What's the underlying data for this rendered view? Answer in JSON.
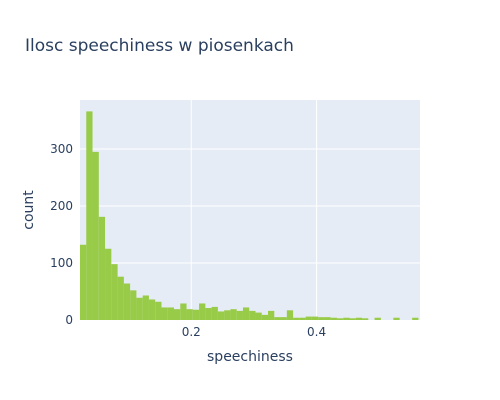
{
  "chart_data": {
    "type": "bar",
    "histogram": true,
    "title": "Ilosc speechiness w piosenkach",
    "xlabel": "speechiness",
    "ylabel": "count",
    "xlim": [
      0.0225,
      0.565
    ],
    "ylim": [
      0,
      386
    ],
    "xticks": [
      0.2,
      0.4
    ],
    "xtick_labels": [
      "0.2",
      "0.4"
    ],
    "yticks": [
      0,
      100,
      200,
      300
    ],
    "ytick_labels": [
      "0",
      "100",
      "200",
      "300"
    ],
    "grid": true,
    "legend": "none",
    "bin_width": 0.01,
    "bin_start": 0.0225,
    "values": [
      132,
      366,
      295,
      181,
      125,
      98,
      76,
      64,
      52,
      39,
      43,
      36,
      32,
      22,
      22,
      19,
      29,
      19,
      18,
      29,
      21,
      23,
      15,
      17,
      19,
      16,
      22,
      16,
      13,
      9,
      16,
      5,
      5,
      17,
      4,
      4,
      6,
      6,
      5,
      5,
      4,
      3,
      4,
      3,
      4,
      3,
      0,
      4,
      0,
      0,
      4,
      0,
      0,
      4
    ]
  },
  "colors": {
    "plot_background": "#e5ecf6",
    "bar": "#98cb47",
    "grid": "#ffffff",
    "text": "#2a3f5f"
  }
}
